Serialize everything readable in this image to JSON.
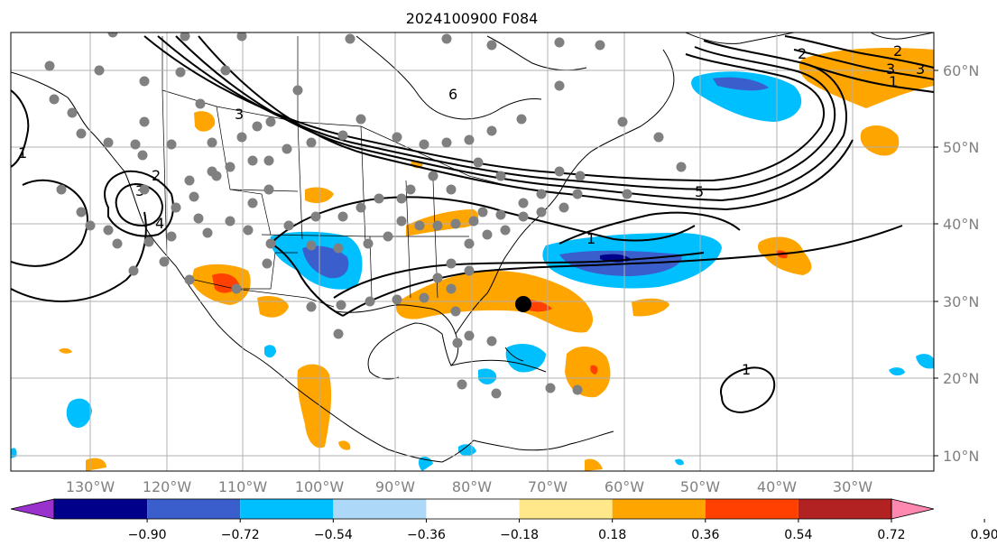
{
  "title": "2024100900 F084",
  "lon_labels": [
    "130°W",
    "120°W",
    "110°W",
    "100°W",
    "90°W",
    "80°W",
    "70°W",
    "60°W",
    "50°W",
    "40°W",
    "30°W"
  ],
  "lat_labels": [
    "60°N",
    "50°N",
    "40°N",
    "30°N",
    "20°N",
    "10°N"
  ],
  "colorbar": {
    "ticks": [
      "−0.90",
      "−0.72",
      "−0.54",
      "−0.36",
      "−0.18",
      "0.18",
      "0.36",
      "0.54",
      "0.72",
      "0.90"
    ],
    "colors": [
      "#9932cc",
      "#00008b",
      "#3a5fcd",
      "#00bfff",
      "#add8f7",
      "#ffffff",
      "#ffe88a",
      "#ffa500",
      "#ff4000",
      "#b22222",
      "#ff88b0"
    ]
  },
  "contour_labels": [
    "6",
    "2",
    "3",
    "1",
    "2",
    "3",
    "4",
    "1",
    "5",
    "2",
    "3",
    "3",
    "1",
    "1"
  ],
  "marker": "storm-position-dot"
}
